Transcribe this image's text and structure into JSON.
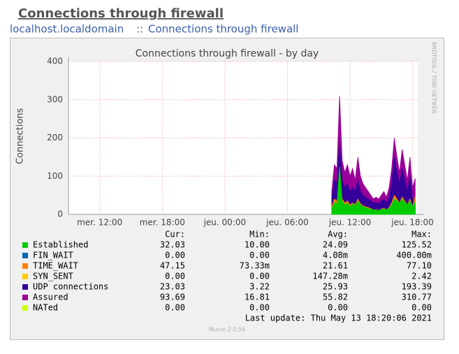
{
  "page": {
    "heading": "Connections through firewall",
    "breadcrumb": [
      "localhost.localdomain",
      "::",
      "Connections through firewall"
    ],
    "side_text": "RRDTOOL / TOBI OETIKER",
    "last_update": "Last update: Thu May 13 18:20:06 2021",
    "footer": "Munin 2.0.56"
  },
  "chart_data": {
    "type": "area",
    "title": "Connections through firewall - by day",
    "y_label": "Connections",
    "xlim": [
      9,
      42.5
    ],
    "xticks": [
      {
        "value": 12,
        "label": "mer. 12:00"
      },
      {
        "value": 18,
        "label": "mer. 18:00"
      },
      {
        "value": 24,
        "label": "jeu. 00:00"
      },
      {
        "value": 30,
        "label": "jeu. 06:00"
      },
      {
        "value": 36,
        "label": "jeu. 12:00"
      },
      {
        "value": 42,
        "label": "jeu. 18:00"
      }
    ],
    "ylim": [
      0,
      400
    ],
    "yticks": [
      0,
      100,
      200,
      300,
      400
    ],
    "grid": true,
    "stats_columns": [
      "Cur:",
      "Min:",
      "Avg:",
      "Max:"
    ],
    "x": [
      34.25,
      34.5,
      34.75,
      35,
      35.25,
      35.5,
      35.75,
      36,
      36.25,
      36.5,
      36.75,
      37,
      37.25,
      37.5,
      37.75,
      38,
      38.25,
      38.5,
      38.75,
      39,
      39.25,
      39.5,
      39.75,
      40,
      40.25,
      40.5,
      40.75,
      41,
      41.25,
      41.5,
      41.75,
      42,
      42.25
    ],
    "series": [
      {
        "name": "Established",
        "color": "#00cc00",
        "stats": [
          "32.03",
          "10.00",
          "24.09",
          "125.52"
        ],
        "values": [
          15,
          30,
          28,
          125,
          35,
          25,
          30,
          20,
          28,
          22,
          35,
          25,
          20,
          18,
          15,
          14,
          12,
          11,
          10,
          13,
          14,
          12,
          16,
          25,
          40,
          35,
          30,
          40,
          32,
          25,
          35,
          20,
          32
        ]
      },
      {
        "name": "FIN_WAIT",
        "color": "#0066b3",
        "stats": [
          "0.00",
          "0.00",
          "4.08m",
          "400.00m"
        ],
        "values": [
          0,
          0,
          0,
          0,
          0,
          0,
          0,
          0,
          0,
          0,
          0,
          0,
          0,
          0,
          0,
          0,
          0,
          0,
          0,
          0,
          0,
          0,
          0,
          0,
          0,
          0,
          0,
          0,
          0,
          0,
          0,
          0,
          0
        ]
      },
      {
        "name": "TIME_WAIT",
        "color": "#ff8000",
        "stats": [
          "47.15",
          "73.33m",
          "21.61",
          "77.10"
        ],
        "values": [
          20,
          40,
          35,
          77,
          40,
          30,
          35,
          25,
          30,
          25,
          40,
          28,
          22,
          20,
          18,
          15,
          12,
          12,
          10,
          14,
          16,
          12,
          18,
          30,
          50,
          40,
          30,
          45,
          35,
          25,
          40,
          20,
          47
        ]
      },
      {
        "name": "SYN_SENT",
        "color": "#ffcc00",
        "stats": [
          "0.00",
          "0.00",
          "147.28m",
          "2.42"
        ],
        "values": [
          0,
          0,
          0,
          0,
          0,
          0,
          0,
          0,
          0,
          0,
          0,
          0,
          0,
          0,
          0,
          0,
          0,
          0,
          0,
          0,
          0,
          0,
          0,
          0,
          0,
          0,
          0,
          0,
          0,
          0,
          0,
          0,
          0
        ]
      },
      {
        "name": "UDP connections",
        "color": "#330099",
        "stats": [
          "23.03",
          "3.22",
          "25.93",
          "193.39"
        ],
        "values": [
          40,
          90,
          80,
          190,
          90,
          70,
          80,
          60,
          70,
          60,
          90,
          60,
          50,
          45,
          40,
          35,
          30,
          30,
          28,
          35,
          40,
          30,
          45,
          80,
          150,
          110,
          80,
          120,
          90,
          60,
          100,
          40,
          23
        ]
      },
      {
        "name": "Assured",
        "color": "#990099",
        "stats": [
          "93.69",
          "16.81",
          "55.82",
          "310.77"
        ],
        "values": [
          60,
          130,
          120,
          310,
          140,
          110,
          130,
          100,
          120,
          90,
          150,
          100,
          80,
          70,
          60,
          50,
          40,
          45,
          40,
          50,
          60,
          45,
          70,
          120,
          200,
          150,
          110,
          170,
          130,
          90,
          150,
          70,
          94
        ]
      },
      {
        "name": "NATed",
        "color": "#ccff00",
        "stats": [
          "0.00",
          "0.00",
          "0.00",
          "0.00"
        ],
        "values": [
          0,
          0,
          0,
          0,
          0,
          0,
          0,
          0,
          0,
          0,
          0,
          0,
          0,
          0,
          0,
          0,
          0,
          0,
          0,
          0,
          0,
          0,
          0,
          0,
          0,
          0,
          0,
          0,
          0,
          0,
          0,
          0,
          0
        ]
      }
    ]
  }
}
